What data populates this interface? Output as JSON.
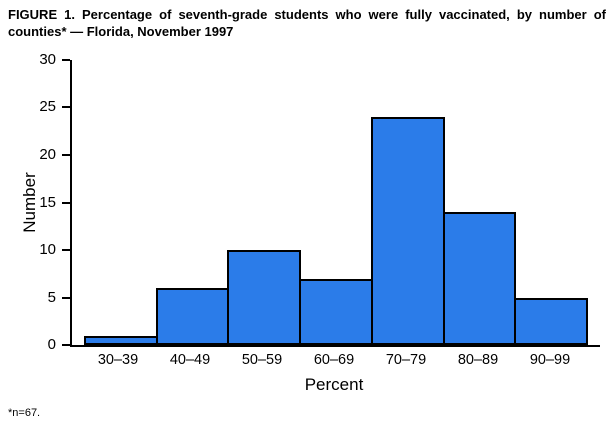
{
  "title": "FIGURE 1. Percentage of seventh-grade students who were fully vaccinated, by number of counties* — Florida, November 1997",
  "footnote": "*n=67.",
  "chart_data": {
    "type": "bar",
    "title": "FIGURE 1. Percentage of seventh-grade students who were fully vaccinated, by number of counties* — Florida, November 1997",
    "categories": [
      "30–39",
      "40–49",
      "50–59",
      "60–69",
      "70–79",
      "80–89",
      "90–99"
    ],
    "values": [
      1,
      6,
      10,
      7,
      24,
      14,
      5
    ],
    "xlabel": "Percent",
    "ylabel": "Number",
    "ylim": [
      0,
      30
    ],
    "yticks": [
      0,
      5,
      10,
      15,
      20,
      25,
      30
    ],
    "bar_color": "#2b7ce9",
    "bar_border_color": "#000000",
    "grid": false,
    "legend": false
  }
}
